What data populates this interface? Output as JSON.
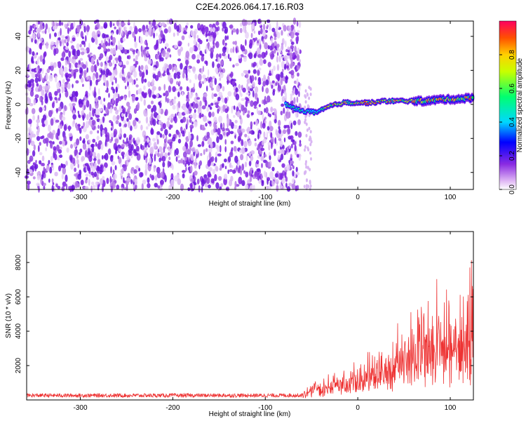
{
  "title": "C2E4.2026.064.17.16.R03",
  "chart_data": [
    {
      "type": "heatmap",
      "title": "C2E4.2026.064.17.16.R03",
      "xlabel": "Height of straight line (km)",
      "ylabel": "Frequency (Hz)",
      "xlim": [
        -358,
        125
      ],
      "ylim": [
        -50,
        49
      ],
      "xticks": [
        -300,
        -200,
        -100,
        0,
        100
      ],
      "yticks": [
        -40,
        -20,
        0,
        20,
        40
      ],
      "noise_region_x": [
        -358,
        -70
      ],
      "signal_ridge": {
        "x": [
          -78,
          -70,
          -60,
          -52,
          -45,
          -30,
          -15,
          0,
          15,
          30,
          45,
          60,
          75,
          90,
          105,
          125
        ],
        "freq": [
          0,
          -2,
          -4,
          -4,
          -5,
          -1,
          1,
          1,
          1,
          2,
          2,
          2,
          2,
          3,
          3,
          4
        ]
      },
      "colorbar": {
        "label": "Normalized spectral amplitude",
        "range": [
          0,
          1
        ],
        "ticks": [
          "0.0",
          "0.2",
          "0.4",
          "0.6",
          "0.8"
        ]
      }
    },
    {
      "type": "line",
      "xlabel": "Height of straight line (km)",
      "ylabel": "SNR (10 * v/v)",
      "xlim": [
        -358,
        125
      ],
      "ylim": [
        0,
        9800
      ],
      "xticks": [
        -300,
        -200,
        -100,
        0,
        100
      ],
      "yticks": [
        2000,
        4000,
        6000,
        8000
      ],
      "series": [
        {
          "name": "SNR",
          "color": "#ee3333",
          "x": [
            -358,
            -300,
            -200,
            -100,
            -60,
            -50,
            -46,
            -44,
            -40,
            -30,
            -20,
            -10,
            0,
            10,
            20,
            30,
            40,
            50,
            60,
            70,
            80,
            90,
            100,
            110,
            120,
            125
          ],
          "y": [
            250,
            250,
            250,
            250,
            260,
            500,
            1100,
            800,
            500,
            900,
            1100,
            1300,
            1500,
            1700,
            1800,
            2100,
            2300,
            2600,
            2800,
            3000,
            3100,
            3200,
            3300,
            3300,
            3400,
            3400
          ],
          "envelope_max": [
            600,
            550,
            550,
            500,
            550,
            1000,
            2000,
            1500,
            1100,
            1800,
            1900,
            2300,
            2700,
            3000,
            3300,
            3800,
            4800,
            5100,
            6800,
            7700,
            7400,
            7300,
            7800,
            8200,
            9700,
            9100
          ]
        }
      ]
    }
  ]
}
